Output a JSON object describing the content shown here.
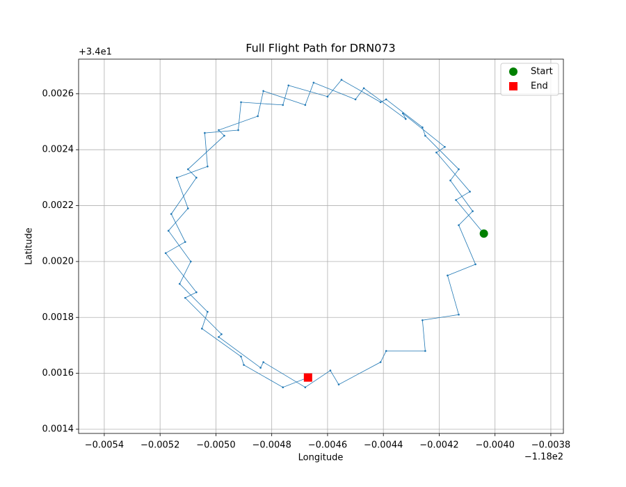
{
  "chart_data": {
    "type": "line",
    "title": "Full Flight Path for DRN073",
    "x_label": "Longitude",
    "y_label": "Latitude",
    "x_offset_label": "−1.18e2",
    "y_offset_label": "+3.4e1",
    "grid": true,
    "legend_position": "upper right",
    "xlim": [
      -0.005492,
      -0.003755
    ],
    "ylim": [
      0.001385,
      0.002724
    ],
    "xticks": [
      {
        "value": -0.0054,
        "label": "−0.0054"
      },
      {
        "value": -0.0052,
        "label": "−0.0052"
      },
      {
        "value": -0.005,
        "label": "−0.0050"
      },
      {
        "value": -0.0048,
        "label": "−0.0048"
      },
      {
        "value": -0.0046,
        "label": "−0.0046"
      },
      {
        "value": -0.0044,
        "label": "−0.0044"
      },
      {
        "value": -0.0042,
        "label": "−0.0042"
      },
      {
        "value": -0.004,
        "label": "−0.0040"
      },
      {
        "value": -0.0038,
        "label": "−0.0038"
      }
    ],
    "yticks": [
      0.0014,
      0.0016,
      0.0018,
      {
        "value": 0.002,
        "label": "0.0020"
      },
      0.0022,
      0.0024,
      0.0026
    ],
    "path": {
      "color": "#1f77b4",
      "x": [
        -0.00404,
        -0.00414,
        -0.00409,
        -0.00421,
        -0.00418,
        -0.00433,
        -0.00432,
        -0.00447,
        -0.0045,
        -0.00465,
        -0.00468,
        -0.00483,
        -0.00485,
        -0.00499,
        -0.00497,
        -0.0051,
        -0.00507,
        -0.00516,
        -0.00511,
        -0.00518,
        -0.00507,
        -0.00511,
        -0.00498,
        -0.00499,
        -0.00484,
        -0.00483,
        -0.00468,
        -0.00459,
        -0.00456,
        -0.00441,
        -0.00439,
        -0.00425,
        -0.00426,
        -0.00413,
        -0.00417,
        -0.00407,
        -0.00413,
        -0.00408,
        -0.00416,
        -0.00413,
        -0.00425,
        -0.00426,
        -0.00439,
        -0.00441,
        -0.00455,
        -0.0046,
        -0.00474,
        -0.00476,
        -0.00491,
        -0.00492,
        -0.00504,
        -0.00503,
        -0.00514,
        -0.0051,
        -0.00517,
        -0.00509,
        -0.00513,
        -0.00503,
        -0.00505,
        -0.00491,
        -0.0049,
        -0.00476,
        -0.00467
      ],
      "y": [
        0.0021,
        0.00222,
        0.00225,
        0.00239,
        0.00241,
        0.00253,
        0.00251,
        0.00262,
        0.00258,
        0.00264,
        0.00256,
        0.00261,
        0.00252,
        0.00247,
        0.00245,
        0.00233,
        0.0023,
        0.00217,
        0.00207,
        0.00203,
        0.00189,
        0.00187,
        0.00174,
        0.00173,
        0.00162,
        0.00164,
        0.00155,
        0.00161,
        0.00156,
        0.00164,
        0.00168,
        0.00168,
        0.00179,
        0.00181,
        0.00195,
        0.00199,
        0.00213,
        0.00218,
        0.00229,
        0.00233,
        0.00245,
        0.00248,
        0.00258,
        0.00257,
        0.00265,
        0.00259,
        0.00263,
        0.00256,
        0.00257,
        0.00247,
        0.00246,
        0.00234,
        0.0023,
        0.00219,
        0.00211,
        0.002,
        0.00192,
        0.00182,
        0.00176,
        0.00166,
        0.00163,
        0.00155,
        0.001585
      ]
    },
    "start": {
      "name": "Start",
      "color": "#008000",
      "x": -0.00404,
      "y": 0.0021
    },
    "end": {
      "name": "End",
      "color": "#ff0000",
      "x": -0.00467,
      "y": 0.001585
    }
  }
}
